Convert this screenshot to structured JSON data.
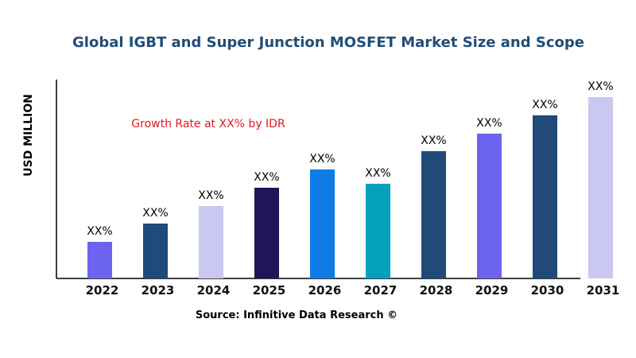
{
  "chart_data": {
    "type": "bar",
    "title": "Global IGBT and Super Junction MOSFET Market Size and Scope",
    "ylabel": "USD MILLION",
    "xlabel": "",
    "annotation": "Growth Rate at XX% by IDR",
    "source": "Source: Infinitive Data Research ©",
    "categories": [
      "2022",
      "2023",
      "2024",
      "2025",
      "2026",
      "2027",
      "2028",
      "2029",
      "2030",
      "2031"
    ],
    "values": [
      46,
      69,
      91,
      114,
      137,
      119,
      160,
      182,
      205,
      228
    ],
    "data_labels": [
      "XX%",
      "XX%",
      "XX%",
      "XX%",
      "XX%",
      "XX%",
      "XX%",
      "XX%",
      "XX%",
      "XX%"
    ],
    "colors": [
      "#6c63f0",
      "#1f4a7a",
      "#c8c8f0",
      "#1e1656",
      "#0f7be6",
      "#03a1bb",
      "#1f4a7a",
      "#6c63f0",
      "#1f4a7a",
      "#c8c8f0"
    ],
    "ylim": [
      0,
      250
    ],
    "grid": false,
    "y_ticks_shown": false
  }
}
